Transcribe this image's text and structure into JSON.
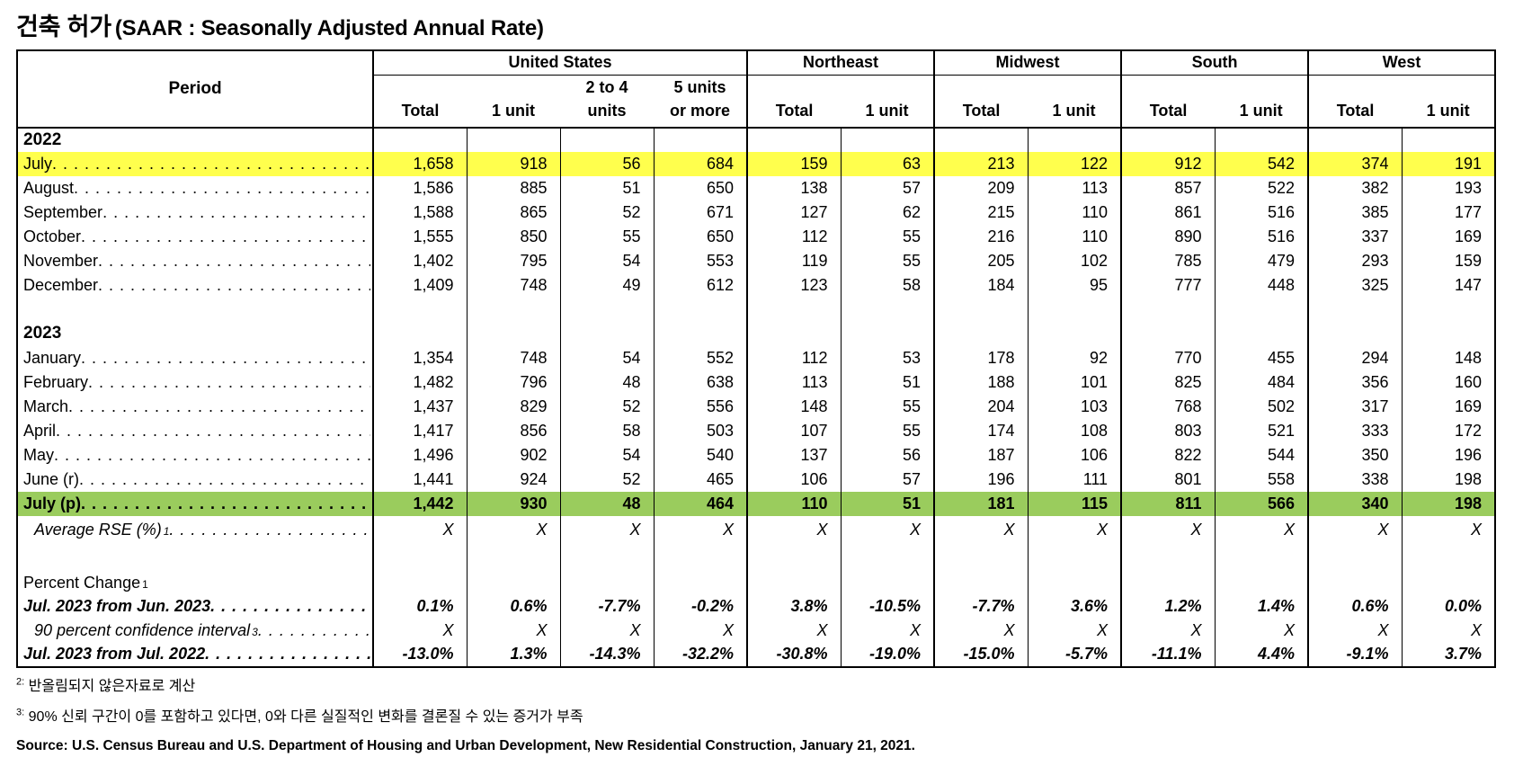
{
  "title": {
    "korean": "건축 허가",
    "english": "(SAAR : Seasonally Adjusted Annual Rate)"
  },
  "colors": {
    "highlight_yellow": "#FFFF4D",
    "highlight_green": "#9ACC5D"
  },
  "table": {
    "period_header": "Period",
    "groups": [
      {
        "label": "United States",
        "cols": [
          "Total",
          "1 unit",
          "2 to 4\nunits",
          "5 units\nor more"
        ]
      },
      {
        "label": "Northeast",
        "cols": [
          "Total",
          "1 unit"
        ]
      },
      {
        "label": "Midwest",
        "cols": [
          "Total",
          "1 unit"
        ]
      },
      {
        "label": "South",
        "cols": [
          "Total",
          "1 unit"
        ]
      },
      {
        "label": "West",
        "cols": [
          "Total",
          "1 unit"
        ]
      }
    ],
    "rows": [
      {
        "type": "year",
        "label": "2022"
      },
      {
        "type": "month",
        "highlight": "yellow",
        "label": "July",
        "leader": true,
        "values": [
          "1,658",
          "918",
          "56",
          "684",
          "159",
          "63",
          "213",
          "122",
          "912",
          "542",
          "374",
          "191"
        ]
      },
      {
        "type": "month",
        "label": "August",
        "leader": true,
        "values": [
          "1,586",
          "885",
          "51",
          "650",
          "138",
          "57",
          "209",
          "113",
          "857",
          "522",
          "382",
          "193"
        ]
      },
      {
        "type": "month",
        "label": "September",
        "leader": true,
        "values": [
          "1,588",
          "865",
          "52",
          "671",
          "127",
          "62",
          "215",
          "110",
          "861",
          "516",
          "385",
          "177"
        ]
      },
      {
        "type": "month",
        "label": "October",
        "leader": true,
        "values": [
          "1,555",
          "850",
          "55",
          "650",
          "112",
          "55",
          "216",
          "110",
          "890",
          "516",
          "337",
          "169"
        ]
      },
      {
        "type": "month",
        "label": "November",
        "leader": true,
        "values": [
          "1,402",
          "795",
          "54",
          "553",
          "119",
          "55",
          "205",
          "102",
          "785",
          "479",
          "293",
          "159"
        ]
      },
      {
        "type": "month",
        "label": "December",
        "leader": true,
        "values": [
          "1,409",
          "748",
          "49",
          "612",
          "123",
          "58",
          "184",
          "95",
          "777",
          "448",
          "325",
          "147"
        ]
      },
      {
        "type": "blank"
      },
      {
        "type": "year",
        "label": "2023"
      },
      {
        "type": "month",
        "label": "January",
        "leader": true,
        "values": [
          "1,354",
          "748",
          "54",
          "552",
          "112",
          "53",
          "178",
          "92",
          "770",
          "455",
          "294",
          "148"
        ]
      },
      {
        "type": "month",
        "label": "February",
        "leader": true,
        "values": [
          "1,482",
          "796",
          "48",
          "638",
          "113",
          "51",
          "188",
          "101",
          "825",
          "484",
          "356",
          "160"
        ]
      },
      {
        "type": "month",
        "label": "March",
        "leader": true,
        "values": [
          "1,437",
          "829",
          "52",
          "556",
          "148",
          "55",
          "204",
          "103",
          "768",
          "502",
          "317",
          "169"
        ]
      },
      {
        "type": "month",
        "label": "April",
        "leader": true,
        "values": [
          "1,417",
          "856",
          "58",
          "503",
          "107",
          "55",
          "174",
          "108",
          "803",
          "521",
          "333",
          "172"
        ]
      },
      {
        "type": "month",
        "label": "May",
        "leader": true,
        "values": [
          "1,496",
          "902",
          "54",
          "540",
          "137",
          "56",
          "187",
          "106",
          "822",
          "544",
          "350",
          "196"
        ]
      },
      {
        "type": "month",
        "label": "June (r)",
        "leader": true,
        "values": [
          "1,441",
          "924",
          "52",
          "465",
          "106",
          "57",
          "196",
          "111",
          "801",
          "558",
          "338",
          "198"
        ]
      },
      {
        "type": "month",
        "highlight": "green",
        "label": "July (p)",
        "leader": true,
        "values": [
          "1,442",
          "930",
          "48",
          "464",
          "110",
          "51",
          "181",
          "115",
          "811",
          "566",
          "340",
          "198"
        ]
      },
      {
        "type": "rse",
        "label": "Average RSE (%)",
        "sup": "1",
        "leader": true,
        "values": [
          "X",
          "X",
          "X",
          "X",
          "X",
          "X",
          "X",
          "X",
          "X",
          "X",
          "X",
          "X"
        ]
      },
      {
        "type": "blank"
      },
      {
        "type": "section",
        "label": "Percent Change",
        "sup": "1"
      },
      {
        "type": "pct",
        "label": "Jul. 2023 from Jun. 2023",
        "leader": true,
        "values": [
          "0.1%",
          "0.6%",
          "-7.7%",
          "-0.2%",
          "3.8%",
          "-10.5%",
          "-7.7%",
          "3.6%",
          "1.2%",
          "1.4%",
          "0.6%",
          "0.0%"
        ]
      },
      {
        "type": "ci",
        "label": "90 percent confidence interval",
        "sup": "3",
        "leader": true,
        "values": [
          "X",
          "X",
          "X",
          "X",
          "X",
          "X",
          "X",
          "X",
          "X",
          "X",
          "X",
          "X"
        ]
      },
      {
        "type": "pct",
        "label": "Jul. 2023 from Jul. 2022",
        "leader": true,
        "values": [
          "-13.0%",
          "1.3%",
          "-14.3%",
          "-32.2%",
          "-30.8%",
          "-19.0%",
          "-15.0%",
          "-5.7%",
          "-11.1%",
          "4.4%",
          "-9.1%",
          "3.7%"
        ]
      }
    ]
  },
  "footnotes": [
    {
      "sup": "2:",
      "text": "반올림되지 않은자료로 계산"
    },
    {
      "sup": "3:",
      "text": "90% 신뢰 구간이 0를 포함하고 있다면, 0와 다른 실질적인 변화를 결론질 수 있는 증거가 부족"
    }
  ],
  "source": "Source: U.S. Census Bureau and U.S. Department of Housing and Urban Development, New Residential Construction, January 21, 2021."
}
